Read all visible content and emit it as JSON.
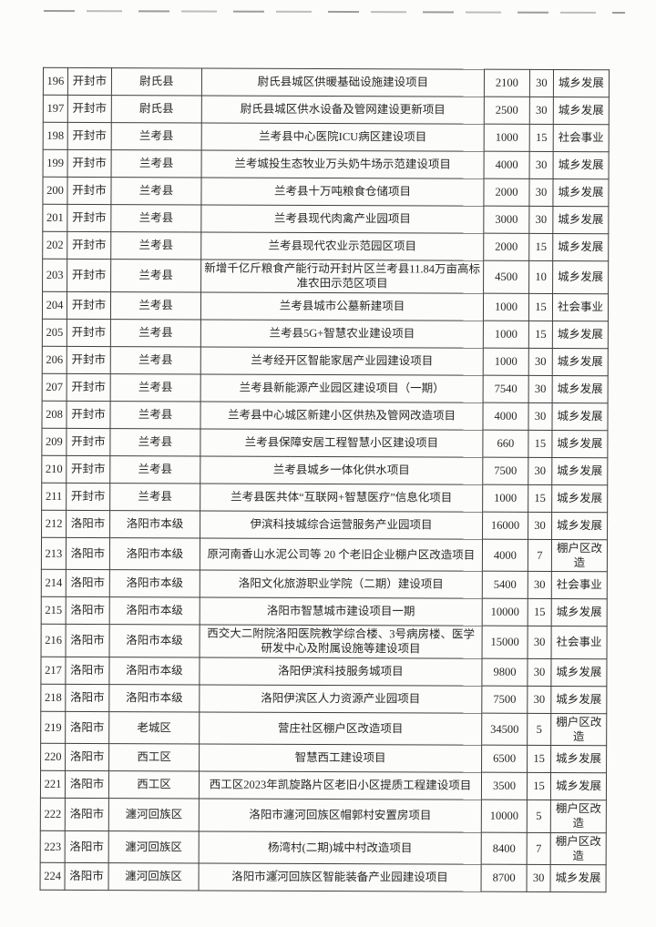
{
  "colors": {
    "paper": "#fcfcfb",
    "table_border": "#3e3e3e",
    "text": "#262626"
  },
  "table": {
    "rows": [
      {
        "no": "196",
        "city": "开封市",
        "county": "尉氏县",
        "project": "尉氏县城区供暖基础设施建设项目",
        "amount": "2100",
        "years": "30",
        "category": "城乡发展"
      },
      {
        "no": "197",
        "city": "开封市",
        "county": "尉氏县",
        "project": "尉氏县城区供水设备及管网建设更新项目",
        "amount": "2500",
        "years": "30",
        "category": "城乡发展"
      },
      {
        "no": "198",
        "city": "开封市",
        "county": "兰考县",
        "project": "兰考县中心医院ICU病区建设项目",
        "amount": "1000",
        "years": "15",
        "category": "社会事业"
      },
      {
        "no": "199",
        "city": "开封市",
        "county": "兰考县",
        "project": "兰考城投生态牧业万头奶牛场示范建设项目",
        "amount": "4000",
        "years": "30",
        "category": "城乡发展"
      },
      {
        "no": "200",
        "city": "开封市",
        "county": "兰考县",
        "project": "兰考县十万吨粮食仓储项目",
        "amount": "2000",
        "years": "30",
        "category": "城乡发展"
      },
      {
        "no": "201",
        "city": "开封市",
        "county": "兰考县",
        "project": "兰考县现代肉禽产业园项目",
        "amount": "3000",
        "years": "30",
        "category": "城乡发展"
      },
      {
        "no": "202",
        "city": "开封市",
        "county": "兰考县",
        "project": "兰考县现代农业示范园区项目",
        "amount": "2000",
        "years": "15",
        "category": "城乡发展"
      },
      {
        "no": "203",
        "city": "开封市",
        "county": "兰考县",
        "project": "新增千亿斤粮食产能行动开封片区兰考县11.84万亩高标准农田示范区项目",
        "amount": "4500",
        "years": "10",
        "category": "城乡发展"
      },
      {
        "no": "204",
        "city": "开封市",
        "county": "兰考县",
        "project": "兰考县城市公墓新建项目",
        "amount": "1000",
        "years": "15",
        "category": "社会事业"
      },
      {
        "no": "205",
        "city": "开封市",
        "county": "兰考县",
        "project": "兰考县5G+智慧农业建设项目",
        "amount": "1000",
        "years": "15",
        "category": "城乡发展"
      },
      {
        "no": "206",
        "city": "开封市",
        "county": "兰考县",
        "project": "兰考经开区智能家居产业园建设项目",
        "amount": "1000",
        "years": "30",
        "category": "城乡发展"
      },
      {
        "no": "207",
        "city": "开封市",
        "county": "兰考县",
        "project": "兰考县新能源产业园区建设项目（一期）",
        "amount": "7540",
        "years": "30",
        "category": "城乡发展"
      },
      {
        "no": "208",
        "city": "开封市",
        "county": "兰考县",
        "project": "兰考县中心城区新建小区供热及管网改造项目",
        "amount": "4000",
        "years": "30",
        "category": "城乡发展"
      },
      {
        "no": "209",
        "city": "开封市",
        "county": "兰考县",
        "project": "兰考县保障安居工程智慧小区建设项目",
        "amount": "660",
        "years": "15",
        "category": "城乡发展"
      },
      {
        "no": "210",
        "city": "开封市",
        "county": "兰考县",
        "project": "兰考县城乡一体化供水项目",
        "amount": "7500",
        "years": "30",
        "category": "城乡发展"
      },
      {
        "no": "211",
        "city": "开封市",
        "county": "兰考县",
        "project": "兰考县医共体“互联网+智慧医疗”信息化项目",
        "amount": "1000",
        "years": "15",
        "category": "城乡发展"
      },
      {
        "no": "212",
        "city": "洛阳市",
        "county": "洛阳市本级",
        "project": "伊滨科技城综合运营服务产业园项目",
        "amount": "16000",
        "years": "30",
        "category": "城乡发展"
      },
      {
        "no": "213",
        "city": "洛阳市",
        "county": "洛阳市本级",
        "project": "原河南香山水泥公司等 20 个老旧企业棚户区改造项目",
        "amount": "4000",
        "years": "7",
        "category": "棚户区改造"
      },
      {
        "no": "214",
        "city": "洛阳市",
        "county": "洛阳市本级",
        "project": "洛阳文化旅游职业学院（二期）建设项目",
        "amount": "5400",
        "years": "30",
        "category": "社会事业"
      },
      {
        "no": "215",
        "city": "洛阳市",
        "county": "洛阳市本级",
        "project": "洛阳市智慧城市建设项目一期",
        "amount": "10000",
        "years": "15",
        "category": "城乡发展"
      },
      {
        "no": "216",
        "city": "洛阳市",
        "county": "洛阳市本级",
        "project": "西交大二附院洛阳医院教学综合楼、3号病房楼、医学研发中心及附属设施等建设项目",
        "amount": "15000",
        "years": "30",
        "category": "社会事业"
      },
      {
        "no": "217",
        "city": "洛阳市",
        "county": "洛阳市本级",
        "project": "洛阳伊滨科技服务城项目",
        "amount": "9800",
        "years": "30",
        "category": "城乡发展"
      },
      {
        "no": "218",
        "city": "洛阳市",
        "county": "洛阳市本级",
        "project": "洛阳伊滨区人力资源产业园项目",
        "amount": "7500",
        "years": "30",
        "category": "城乡发展"
      },
      {
        "no": "219",
        "city": "洛阳市",
        "county": "老城区",
        "project": "营庄社区棚户区改造项目",
        "amount": "34500",
        "years": "5",
        "category": "棚户区改造"
      },
      {
        "no": "220",
        "city": "洛阳市",
        "county": "西工区",
        "project": "智慧西工建设项目",
        "amount": "6500",
        "years": "15",
        "category": "城乡发展"
      },
      {
        "no": "221",
        "city": "洛阳市",
        "county": "西工区",
        "project": "西工区2023年凯旋路片区老旧小区提质工程建设项目",
        "amount": "3500",
        "years": "15",
        "category": "城乡发展"
      },
      {
        "no": "222",
        "city": "洛阳市",
        "county": "瀍河回族区",
        "project": "洛阳市瀍河回族区帽郭村安置房项目",
        "amount": "10000",
        "years": "5",
        "category": "棚户区改造"
      },
      {
        "no": "223",
        "city": "洛阳市",
        "county": "瀍河回族区",
        "project": "杨湾村(二期)城中村改造项目",
        "amount": "8400",
        "years": "7",
        "category": "棚户区改造"
      },
      {
        "no": "224",
        "city": "洛阳市",
        "county": "瀍河回族区",
        "project": "洛阳市瀍河回族区智能装备产业园建设项目",
        "amount": "8700",
        "years": "30",
        "category": "城乡发展"
      }
    ]
  }
}
